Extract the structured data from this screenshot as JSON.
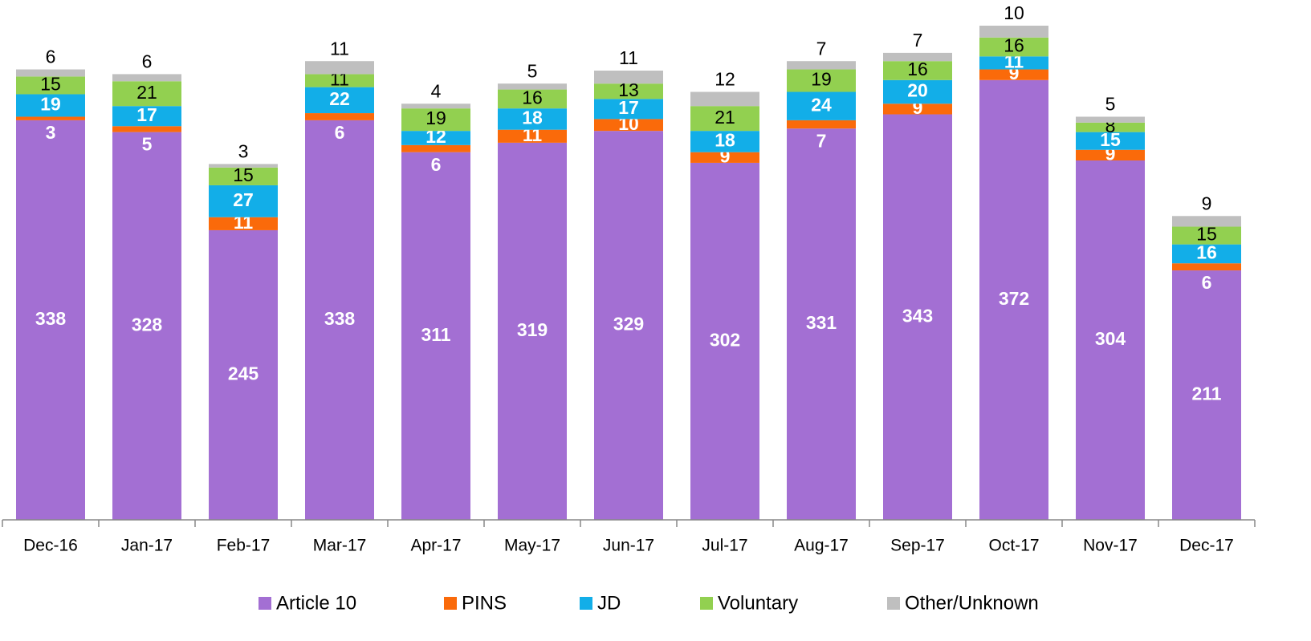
{
  "chart_data": {
    "type": "stacked-bar",
    "categories": [
      "Dec-16",
      "Jan-17",
      "Feb-17",
      "Mar-17",
      "Apr-17",
      "May-17",
      "Jun-17",
      "Jul-17",
      "Aug-17",
      "Sep-17",
      "Oct-17",
      "Nov-17",
      "Dec-17"
    ],
    "series": [
      {
        "name": "Article 10",
        "color": "#a36fd3",
        "values": [
          338,
          328,
          245,
          338,
          311,
          319,
          329,
          302,
          331,
          343,
          372,
          304,
          211
        ]
      },
      {
        "name": "PINS",
        "color": "#fa6a0a",
        "values": [
          3,
          5,
          11,
          6,
          6,
          11,
          10,
          9,
          7,
          9,
          9,
          9,
          6
        ]
      },
      {
        "name": "JD",
        "color": "#12aee8",
        "values": [
          19,
          17,
          27,
          22,
          12,
          18,
          17,
          18,
          24,
          20,
          11,
          15,
          16
        ]
      },
      {
        "name": "Voluntary",
        "color": "#92d050",
        "values": [
          15,
          21,
          15,
          11,
          19,
          16,
          13,
          21,
          19,
          16,
          16,
          8,
          15
        ]
      },
      {
        "name": "Other/Unknown",
        "color": "#bfbfbf",
        "values": [
          6,
          6,
          3,
          11,
          4,
          5,
          11,
          12,
          7,
          7,
          10,
          5,
          9
        ]
      }
    ],
    "legend": "bottom"
  }
}
